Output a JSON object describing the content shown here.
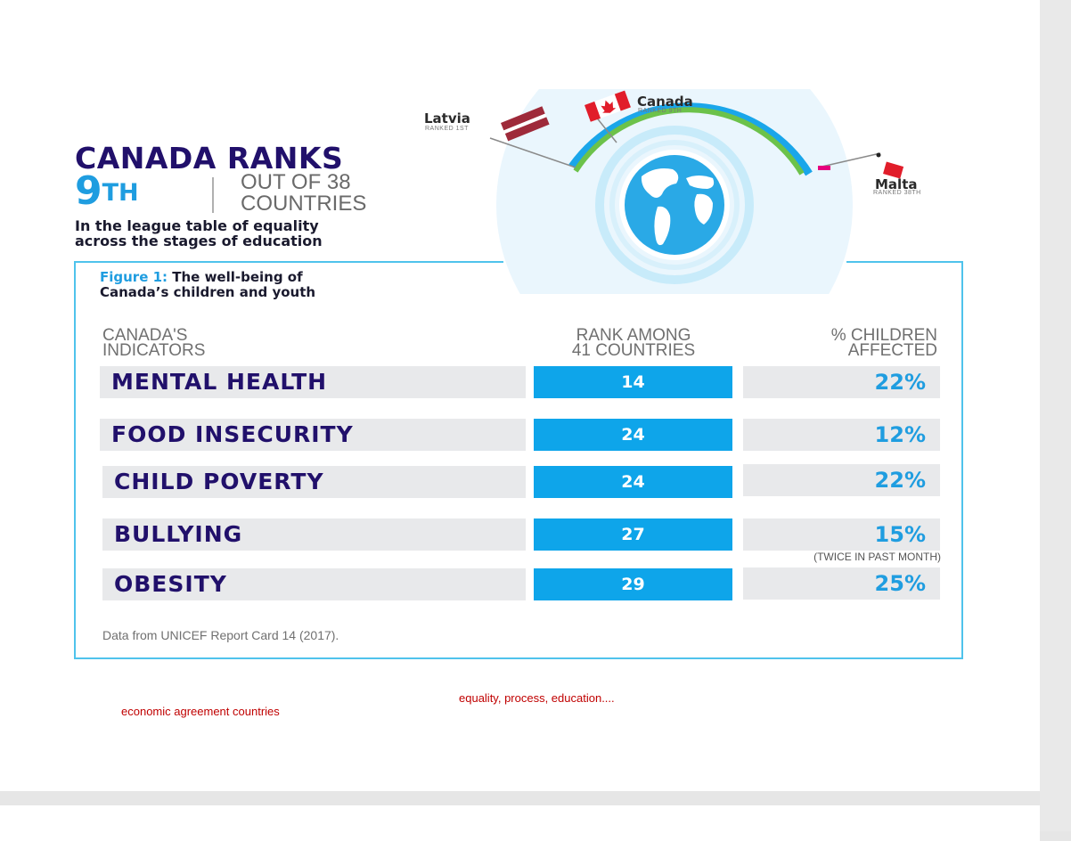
{
  "headline": {
    "title": "CANADA RANKS",
    "rank_number": "9",
    "rank_suffix": "TH",
    "out_of_line1": "OUT OF 38",
    "out_of_line2": "COUNTRIES",
    "subline_1": "In the league table of equality",
    "subline_2": "across the stages of education"
  },
  "flags": {
    "latvia": {
      "name": "Latvia",
      "rank_text": "RANKED 1ST"
    },
    "canada": {
      "name": "Canada",
      "rank_text": "RANKED 9TH"
    },
    "malta": {
      "name": "Malta",
      "rank_text": "RANKED 38TH"
    }
  },
  "figure": {
    "number_label": "Figure 1:",
    "title_1": " The well-being of",
    "title_2": "Canada’s children and youth",
    "columns": {
      "indicators_1": "CANADA'S",
      "indicators_2": "INDICATORS",
      "rank_1": "RANK AMONG",
      "rank_2": "41 COUNTRIES",
      "pct_1": "% CHILDREN",
      "pct_2": "AFFECTED"
    },
    "rows": [
      {
        "indicator": "MENTAL HEALTH",
        "rank": "14",
        "pct": "22%"
      },
      {
        "indicator": "FOOD INSECURITY",
        "rank": "24",
        "pct": "12%"
      },
      {
        "indicator": "CHILD POVERTY",
        "rank": "24",
        "pct": "22%"
      },
      {
        "indicator": "BULLYING",
        "rank": "27",
        "pct": "15%"
      },
      {
        "indicator": "OBESITY",
        "rank": "29",
        "pct": "25%"
      }
    ],
    "bullying_note": "(TWICE IN PAST MONTH)",
    "source": "Data from UNICEF Report Card 14 (2017)."
  },
  "annotations": {
    "left": "economic agreement countries",
    "right": "equality, process, education...."
  },
  "colors": {
    "navy": "#21106b",
    "accent_blue": "#1f9de0",
    "bar_blue": "#0ea5ea",
    "frame": "#4fc3ec",
    "annotation_red": "#c00000"
  }
}
